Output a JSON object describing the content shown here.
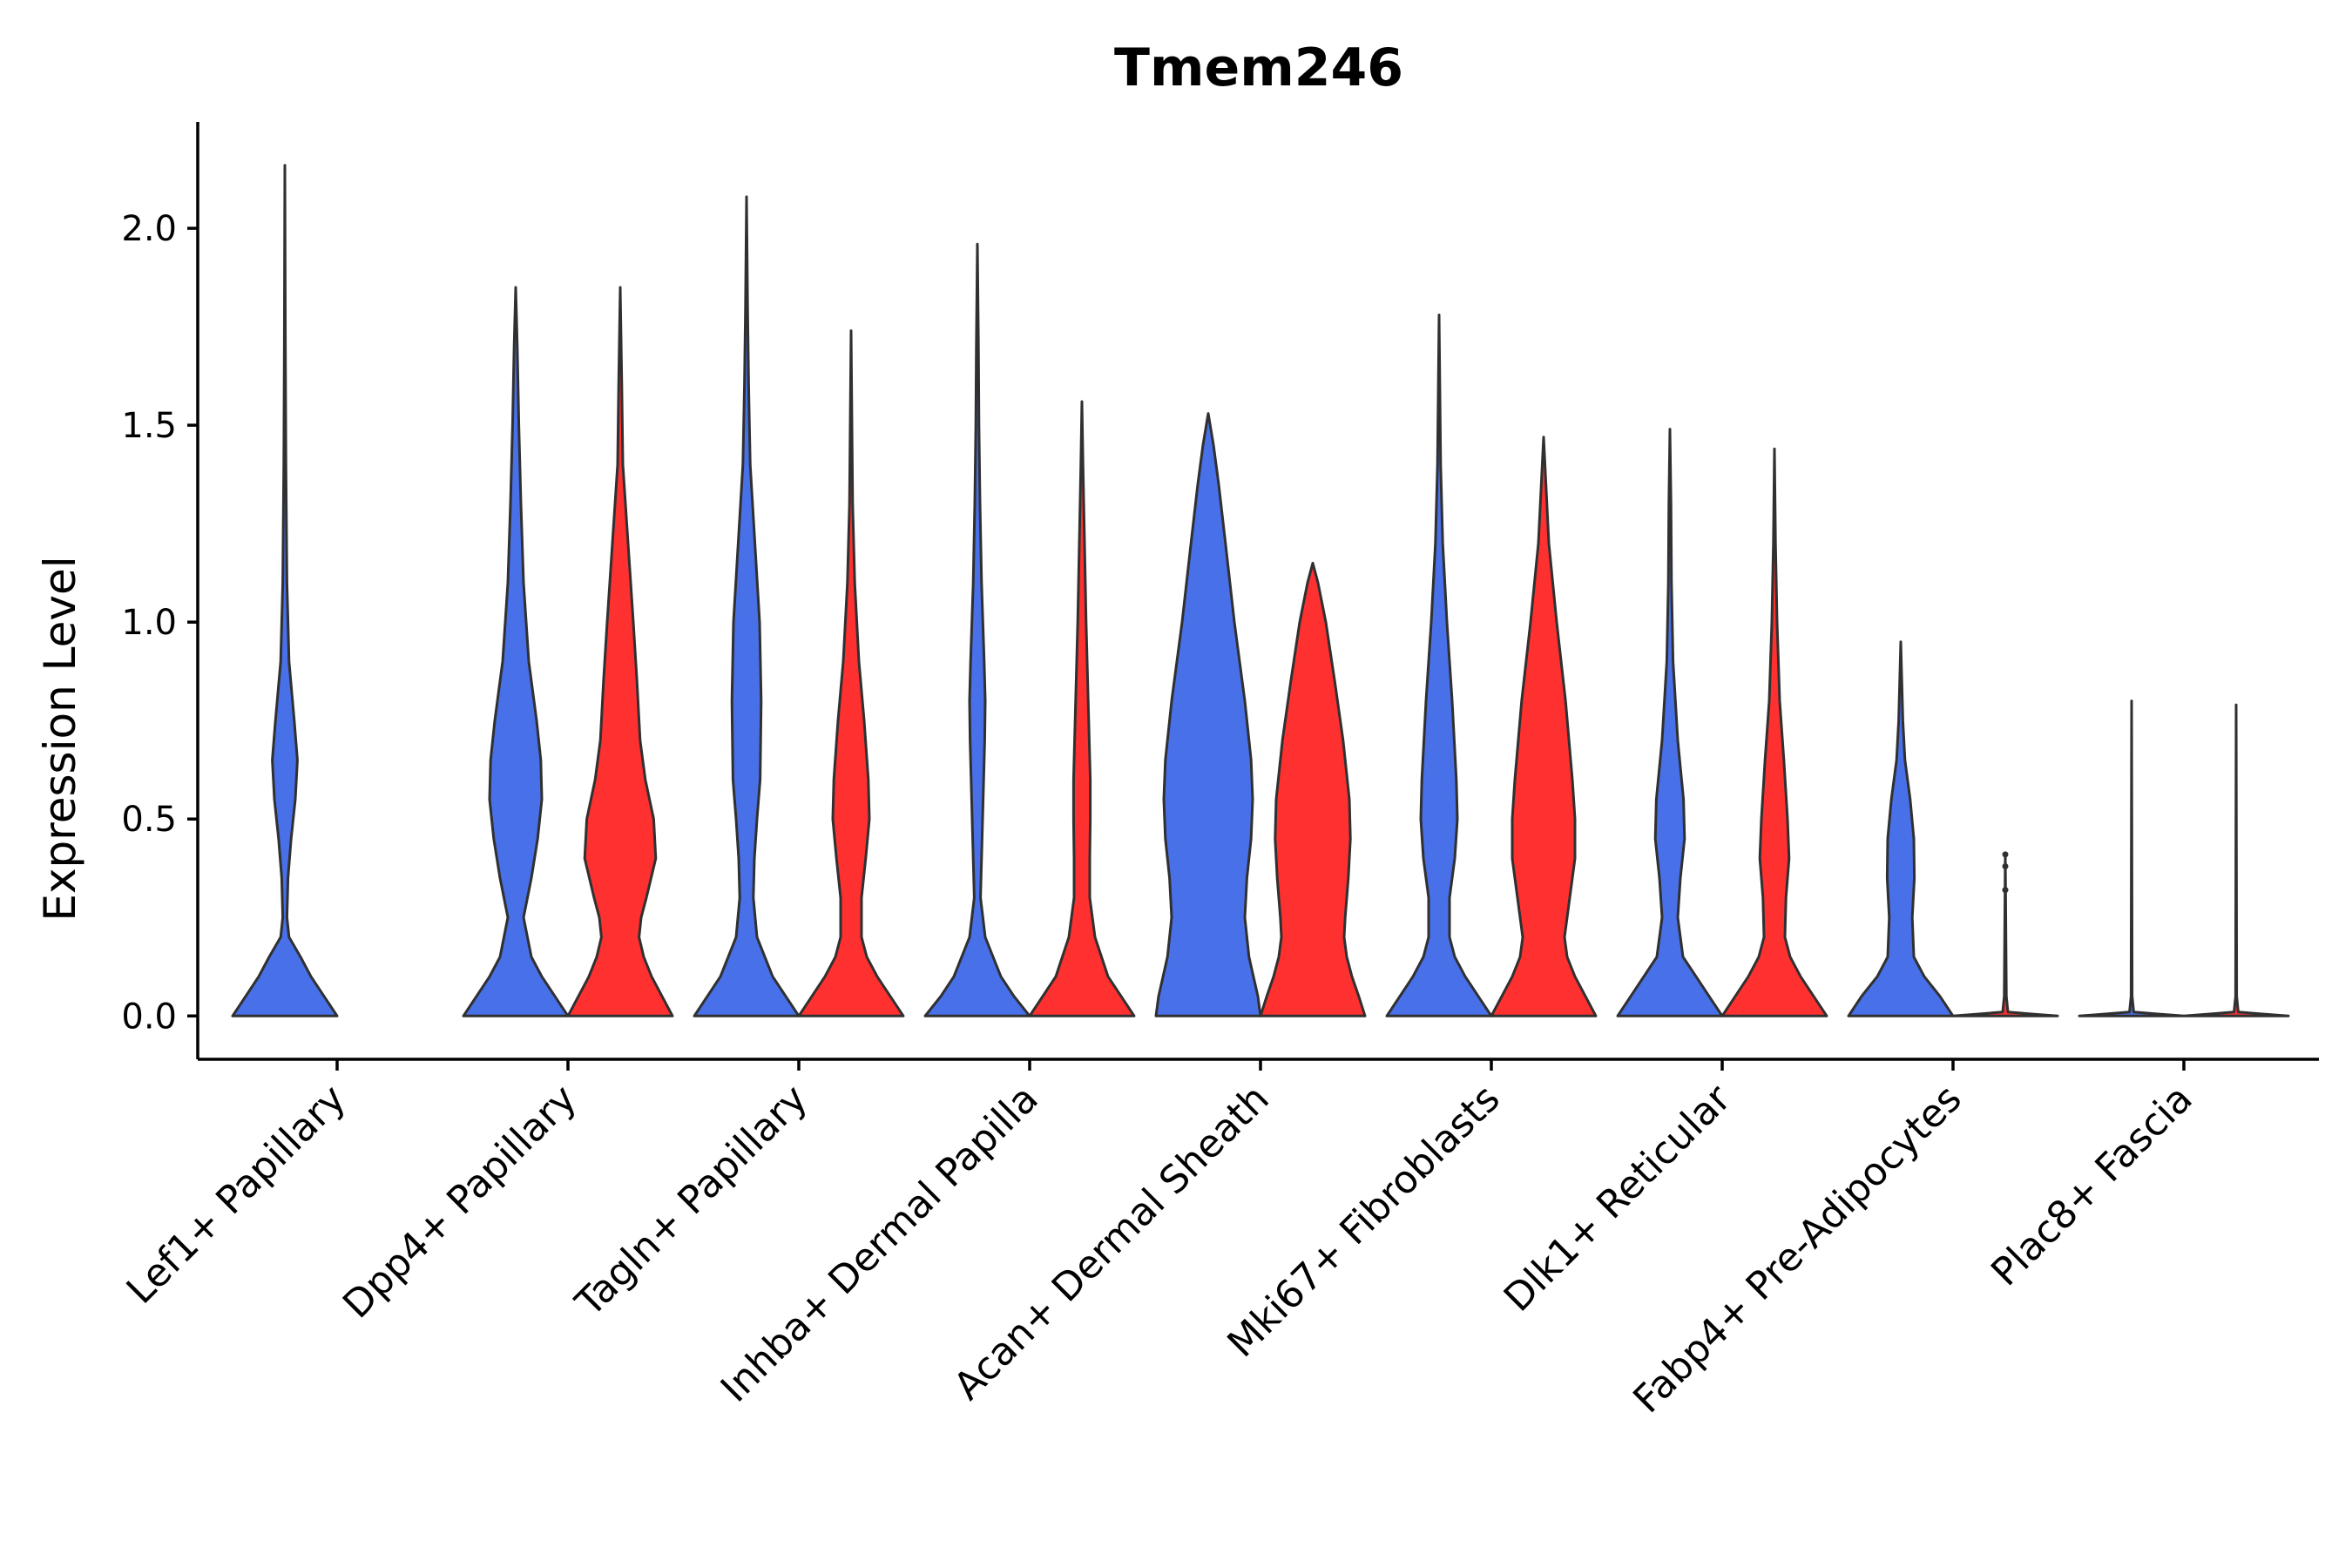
{
  "chart_data": {
    "type": "violin",
    "title": "Tmem246",
    "xlabel": "",
    "ylabel": "Expression Level",
    "ylim": [
      -0.11,
      2.27
    ],
    "yticks": [
      0.0,
      0.5,
      1.0,
      1.5,
      2.0
    ],
    "ytick_labels": [
      "0.0",
      "0.5",
      "1.0",
      "1.5",
      "2.0"
    ],
    "grid": false,
    "legend": "none",
    "colors": {
      "group1": "#4870E8",
      "group2": "#FF3030",
      "outline": "#303030"
    },
    "categories": [
      "Lef1+ Papillary",
      "Dpp4+ Papillary",
      "Tagln+ Papillary",
      "Inhba+ Dermal Papilla",
      "Acan+ Dermal Sheath",
      "Mki67+ Fibroblasts",
      "Dlk1+ Reticular",
      "Fabp4+ Pre-Adipocytes",
      "Plac8+ Fascia"
    ],
    "series": [
      {
        "name": "group1",
        "color": "#4870E8",
        "violins": [
          {
            "category": "Lef1+ Papillary",
            "max": 2.16,
            "density": [
              [
                0,
                1
              ],
              [
                0.05,
                0.75
              ],
              [
                0.1,
                0.5
              ],
              [
                0.15,
                0.3
              ],
              [
                0.2,
                0.08
              ],
              [
                0.25,
                0.04
              ],
              [
                0.35,
                0.06
              ],
              [
                0.45,
                0.12
              ],
              [
                0.55,
                0.2
              ],
              [
                0.65,
                0.24
              ],
              [
                0.75,
                0.18
              ],
              [
                0.9,
                0.08
              ],
              [
                1.1,
                0.04
              ],
              [
                1.4,
                0.02
              ],
              [
                1.7,
                0.01
              ],
              [
                2.16,
                0
              ]
            ]
          },
          {
            "category": "Dpp4+ Papillary",
            "max": 1.85,
            "density": [
              [
                0,
                1
              ],
              [
                0.05,
                0.75
              ],
              [
                0.1,
                0.5
              ],
              [
                0.15,
                0.3
              ],
              [
                0.25,
                0.15
              ],
              [
                0.35,
                0.3
              ],
              [
                0.45,
                0.42
              ],
              [
                0.55,
                0.5
              ],
              [
                0.65,
                0.48
              ],
              [
                0.75,
                0.4
              ],
              [
                0.9,
                0.25
              ],
              [
                1.1,
                0.15
              ],
              [
                1.3,
                0.1
              ],
              [
                1.5,
                0.06
              ],
              [
                1.7,
                0.03
              ],
              [
                1.85,
                0
              ]
            ]
          },
          {
            "category": "Tagln+ Papillary",
            "max": 2.08,
            "density": [
              [
                0,
                1
              ],
              [
                0.05,
                0.75
              ],
              [
                0.1,
                0.5
              ],
              [
                0.2,
                0.2
              ],
              [
                0.3,
                0.13
              ],
              [
                0.4,
                0.15
              ],
              [
                0.5,
                0.2
              ],
              [
                0.6,
                0.26
              ],
              [
                0.8,
                0.28
              ],
              [
                1.0,
                0.25
              ],
              [
                1.2,
                0.16
              ],
              [
                1.4,
                0.07
              ],
              [
                1.6,
                0.04
              ],
              [
                1.8,
                0.02
              ],
              [
                2.08,
                0
              ]
            ]
          },
          {
            "category": "Inhba+ Dermal Papilla",
            "max": 1.96,
            "density": [
              [
                0,
                1
              ],
              [
                0.05,
                0.7
              ],
              [
                0.1,
                0.45
              ],
              [
                0.2,
                0.15
              ],
              [
                0.3,
                0.06
              ],
              [
                0.5,
                0.1
              ],
              [
                0.7,
                0.14
              ],
              [
                0.8,
                0.15
              ],
              [
                0.9,
                0.13
              ],
              [
                1.1,
                0.08
              ],
              [
                1.3,
                0.05
              ],
              [
                1.5,
                0.03
              ],
              [
                1.7,
                0.02
              ],
              [
                1.96,
                0
              ]
            ]
          },
          {
            "category": "Acan+ Dermal Sheath",
            "max": 1.53,
            "density": [
              [
                0,
                1
              ],
              [
                0.05,
                0.95
              ],
              [
                0.15,
                0.78
              ],
              [
                0.25,
                0.7
              ],
              [
                0.35,
                0.74
              ],
              [
                0.45,
                0.82
              ],
              [
                0.55,
                0.85
              ],
              [
                0.65,
                0.82
              ],
              [
                0.8,
                0.7
              ],
              [
                1.0,
                0.5
              ],
              [
                1.2,
                0.33
              ],
              [
                1.35,
                0.2
              ],
              [
                1.45,
                0.1
              ],
              [
                1.53,
                0
              ]
            ]
          },
          {
            "category": "Mki67+ Fibroblasts",
            "max": 1.78,
            "density": [
              [
                0,
                1
              ],
              [
                0.05,
                0.75
              ],
              [
                0.1,
                0.5
              ],
              [
                0.15,
                0.3
              ],
              [
                0.2,
                0.2
              ],
              [
                0.3,
                0.2
              ],
              [
                0.4,
                0.3
              ],
              [
                0.5,
                0.35
              ],
              [
                0.6,
                0.33
              ],
              [
                0.8,
                0.25
              ],
              [
                1.0,
                0.15
              ],
              [
                1.2,
                0.07
              ],
              [
                1.4,
                0.03
              ],
              [
                1.78,
                0
              ]
            ]
          },
          {
            "category": "Dlk1+ Reticular",
            "max": 1.49,
            "density": [
              [
                0,
                1
              ],
              [
                0.05,
                0.75
              ],
              [
                0.1,
                0.5
              ],
              [
                0.15,
                0.25
              ],
              [
                0.25,
                0.15
              ],
              [
                0.35,
                0.2
              ],
              [
                0.45,
                0.28
              ],
              [
                0.55,
                0.26
              ],
              [
                0.7,
                0.15
              ],
              [
                0.9,
                0.06
              ],
              [
                1.1,
                0.03
              ],
              [
                1.3,
                0.02
              ],
              [
                1.49,
                0
              ]
            ]
          },
          {
            "category": "Fabp4+ Pre-Adipocytes",
            "max": 0.95,
            "density": [
              [
                0,
                1
              ],
              [
                0.05,
                0.75
              ],
              [
                0.1,
                0.45
              ],
              [
                0.15,
                0.25
              ],
              [
                0.25,
                0.22
              ],
              [
                0.35,
                0.26
              ],
              [
                0.45,
                0.25
              ],
              [
                0.55,
                0.18
              ],
              [
                0.65,
                0.08
              ],
              [
                0.75,
                0.04
              ],
              [
                0.85,
                0.02
              ],
              [
                0.95,
                0
              ]
            ]
          },
          {
            "category": "Plac8+ Fascia",
            "max": 0.8,
            "density": [
              [
                0,
                1
              ],
              [
                0.005,
                0.5
              ],
              [
                0.01,
                0.04
              ],
              [
                0.05,
                0.01
              ],
              [
                0.8,
                0
              ]
            ]
          }
        ]
      },
      {
        "name": "group2",
        "color": "#FF3030",
        "violins": [
          {
            "category": "Dpp4+ Papillary",
            "max": 1.85,
            "density": [
              [
                0,
                1
              ],
              [
                0.05,
                0.8
              ],
              [
                0.1,
                0.6
              ],
              [
                0.15,
                0.45
              ],
              [
                0.2,
                0.36
              ],
              [
                0.25,
                0.4
              ],
              [
                0.3,
                0.5
              ],
              [
                0.4,
                0.68
              ],
              [
                0.5,
                0.64
              ],
              [
                0.6,
                0.48
              ],
              [
                0.7,
                0.38
              ],
              [
                0.85,
                0.32
              ],
              [
                1.0,
                0.25
              ],
              [
                1.2,
                0.15
              ],
              [
                1.4,
                0.05
              ],
              [
                1.6,
                0.03
              ],
              [
                1.85,
                0
              ]
            ]
          },
          {
            "category": "Tagln+ Papillary",
            "max": 1.74,
            "density": [
              [
                0,
                1
              ],
              [
                0.05,
                0.75
              ],
              [
                0.1,
                0.5
              ],
              [
                0.15,
                0.3
              ],
              [
                0.2,
                0.2
              ],
              [
                0.3,
                0.2
              ],
              [
                0.4,
                0.28
              ],
              [
                0.5,
                0.35
              ],
              [
                0.6,
                0.33
              ],
              [
                0.75,
                0.25
              ],
              [
                0.9,
                0.15
              ],
              [
                1.1,
                0.07
              ],
              [
                1.3,
                0.03
              ],
              [
                1.74,
                0
              ]
            ]
          },
          {
            "category": "Inhba+ Dermal Papilla",
            "max": 1.56,
            "density": [
              [
                0,
                1
              ],
              [
                0.05,
                0.75
              ],
              [
                0.1,
                0.5
              ],
              [
                0.2,
                0.25
              ],
              [
                0.3,
                0.15
              ],
              [
                0.4,
                0.15
              ],
              [
                0.5,
                0.16
              ],
              [
                0.6,
                0.16
              ],
              [
                0.8,
                0.12
              ],
              [
                1.0,
                0.08
              ],
              [
                1.2,
                0.05
              ],
              [
                1.4,
                0.02
              ],
              [
                1.56,
                0
              ]
            ]
          },
          {
            "category": "Acan+ Dermal Sheath",
            "max": 1.15,
            "density": [
              [
                0,
                1
              ],
              [
                0.05,
                0.88
              ],
              [
                0.1,
                0.75
              ],
              [
                0.15,
                0.65
              ],
              [
                0.2,
                0.6
              ],
              [
                0.25,
                0.62
              ],
              [
                0.35,
                0.68
              ],
              [
                0.45,
                0.72
              ],
              [
                0.55,
                0.7
              ],
              [
                0.7,
                0.58
              ],
              [
                0.85,
                0.42
              ],
              [
                1.0,
                0.25
              ],
              [
                1.1,
                0.1
              ],
              [
                1.15,
                0
              ]
            ]
          },
          {
            "category": "Mki67+ Fibroblasts",
            "max": 1.47,
            "density": [
              [
                0,
                1
              ],
              [
                0.05,
                0.8
              ],
              [
                0.1,
                0.6
              ],
              [
                0.15,
                0.45
              ],
              [
                0.2,
                0.4
              ],
              [
                0.3,
                0.5
              ],
              [
                0.4,
                0.6
              ],
              [
                0.5,
                0.6
              ],
              [
                0.6,
                0.55
              ],
              [
                0.8,
                0.42
              ],
              [
                1.0,
                0.25
              ],
              [
                1.2,
                0.1
              ],
              [
                1.47,
                0
              ]
            ]
          },
          {
            "category": "Dlk1+ Reticular",
            "max": 1.44,
            "density": [
              [
                0,
                1
              ],
              [
                0.05,
                0.75
              ],
              [
                0.1,
                0.5
              ],
              [
                0.15,
                0.3
              ],
              [
                0.2,
                0.2
              ],
              [
                0.3,
                0.22
              ],
              [
                0.4,
                0.28
              ],
              [
                0.5,
                0.25
              ],
              [
                0.65,
                0.18
              ],
              [
                0.8,
                0.1
              ],
              [
                1.0,
                0.05
              ],
              [
                1.2,
                0.02
              ],
              [
                1.44,
                0
              ]
            ]
          },
          {
            "category": "Fabp4+ Pre-Adipocytes",
            "max": 0.41,
            "density": [
              [
                0,
                1
              ],
              [
                0.005,
                0.5
              ],
              [
                0.01,
                0.05
              ],
              [
                0.05,
                0.02
              ],
              [
                0.41,
                0
              ]
            ],
            "points": [
              0.32,
              0.38,
              0.41
            ]
          },
          {
            "category": "Plac8+ Fascia",
            "max": 0.79,
            "density": [
              [
                0,
                1
              ],
              [
                0.005,
                0.5
              ],
              [
                0.01,
                0.04
              ],
              [
                0.05,
                0.01
              ],
              [
                0.79,
                0
              ]
            ]
          }
        ]
      }
    ]
  }
}
